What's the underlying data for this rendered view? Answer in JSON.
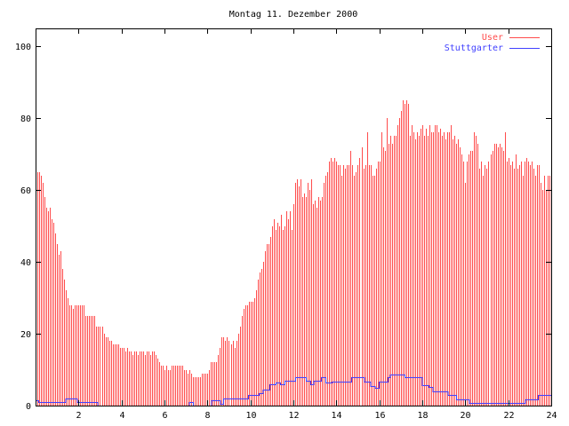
{
  "chart_data": {
    "type": "bar",
    "title": "Montag 11. Dezember 2000",
    "xlabel": "",
    "ylabel": "",
    "xlim": [
      0,
      24
    ],
    "ylim": [
      0,
      105
    ],
    "x_ticks": [
      "2",
      "4",
      "6",
      "8",
      "10",
      "12",
      "14",
      "16",
      "18",
      "20",
      "22",
      "24"
    ],
    "x_tick_values": [
      2,
      4,
      6,
      8,
      10,
      12,
      14,
      16,
      18,
      20,
      22,
      24
    ],
    "y_ticks": [
      "0",
      "20",
      "40",
      "60",
      "80",
      "100"
    ],
    "y_tick_values": [
      0,
      20,
      40,
      60,
      80,
      100
    ],
    "legend_placement": "top-right",
    "grid": false,
    "series": [
      {
        "name": "User",
        "style": "impulses",
        "color": "#ff4c4c",
        "x_start": 0,
        "x_step_hours": 0.08333,
        "values": [
          66,
          65,
          65,
          64,
          62,
          58,
          55,
          54,
          55,
          52,
          51,
          48,
          45,
          42,
          43,
          38,
          35,
          32,
          30,
          28,
          28,
          27,
          28,
          28,
          28,
          28,
          28,
          28,
          25,
          25,
          25,
          25,
          25,
          25,
          22,
          22,
          22,
          22,
          20,
          19,
          19,
          18,
          18,
          17,
          17,
          17,
          17,
          16,
          16,
          16,
          15,
          16,
          15,
          15,
          14,
          15,
          15,
          14,
          15,
          15,
          15,
          14,
          15,
          15,
          14,
          15,
          15,
          14,
          13,
          12,
          11,
          11,
          10,
          11,
          10,
          10,
          11,
          11,
          11,
          11,
          11,
          11,
          11,
          10,
          10,
          9,
          10,
          9,
          8,
          8,
          8,
          8,
          8,
          9,
          9,
          9,
          9,
          10,
          12,
          12,
          12,
          12,
          14,
          16,
          19,
          19,
          18,
          19,
          18,
          17,
          18,
          16,
          18,
          20,
          22,
          25,
          27,
          28,
          28,
          29,
          29,
          29,
          30,
          32,
          35,
          37,
          38,
          40,
          43,
          45,
          45,
          47,
          50,
          52,
          49,
          51,
          50,
          53,
          49,
          50,
          54,
          52,
          54,
          49,
          56,
          62,
          63,
          61,
          63,
          58,
          59,
          58,
          62,
          60,
          63,
          56,
          57,
          55,
          58,
          57,
          58,
          62,
          64,
          65,
          68,
          69,
          68,
          69,
          68,
          67,
          67,
          64,
          67,
          66,
          67,
          67,
          71,
          67,
          64,
          65,
          67,
          69,
          72,
          66,
          67,
          76,
          67,
          67,
          64,
          64,
          66,
          68,
          68,
          76,
          72,
          71,
          80,
          73,
          75,
          73,
          75,
          75,
          78,
          80,
          82,
          85,
          84,
          85,
          84,
          75,
          78,
          76,
          74,
          76,
          75,
          77,
          78,
          75,
          77,
          75,
          78,
          76,
          76,
          78,
          78,
          76,
          77,
          75,
          76,
          74,
          76,
          76,
          78,
          74,
          75,
          73,
          74,
          72,
          70,
          68,
          62,
          68,
          70,
          71,
          71,
          76,
          75,
          73,
          66,
          68,
          64,
          67,
          66,
          68,
          70,
          71,
          73,
          73,
          72,
          73,
          72,
          71,
          76,
          68,
          69,
          67,
          68,
          66,
          70,
          66,
          67,
          68,
          64,
          68,
          69,
          68,
          67,
          68,
          66,
          64,
          67,
          67,
          62,
          60,
          64,
          60,
          64,
          64
        ]
      },
      {
        "name": "Stuttgarter",
        "style": "steps",
        "color": "#4040ff",
        "points": [
          [
            0,
            1.5
          ],
          [
            0.15,
            1
          ],
          [
            1.4,
            2
          ],
          [
            1.95,
            1
          ],
          [
            2.9,
            0
          ],
          [
            7.15,
            1
          ],
          [
            7.35,
            0
          ],
          [
            8.2,
            1.5
          ],
          [
            8.6,
            0.5
          ],
          [
            8.75,
            2
          ],
          [
            9.9,
            3
          ],
          [
            10.4,
            3.5
          ],
          [
            10.6,
            4.5
          ],
          [
            10.9,
            6
          ],
          [
            11.2,
            6.5
          ],
          [
            11.4,
            6
          ],
          [
            11.6,
            7
          ],
          [
            12.1,
            7.8
          ],
          [
            12.6,
            7
          ],
          [
            12.8,
            6
          ],
          [
            12.95,
            7
          ],
          [
            13.3,
            7.8
          ],
          [
            13.5,
            6.5
          ],
          [
            13.8,
            6.7
          ],
          [
            14.7,
            7.8
          ],
          [
            15.3,
            6.7
          ],
          [
            15.6,
            5.5
          ],
          [
            15.8,
            5
          ],
          [
            16.0,
            6.7
          ],
          [
            16.4,
            7.8
          ],
          [
            16.5,
            8.6
          ],
          [
            17.2,
            7.8
          ],
          [
            18.0,
            5.8
          ],
          [
            18.3,
            5.2
          ],
          [
            18.5,
            4
          ],
          [
            19.2,
            2.9
          ],
          [
            19.6,
            1.8
          ],
          [
            20.2,
            0.8
          ],
          [
            22.8,
            1.8
          ],
          [
            23.4,
            2.9
          ],
          [
            24,
            2.9
          ]
        ]
      }
    ]
  }
}
